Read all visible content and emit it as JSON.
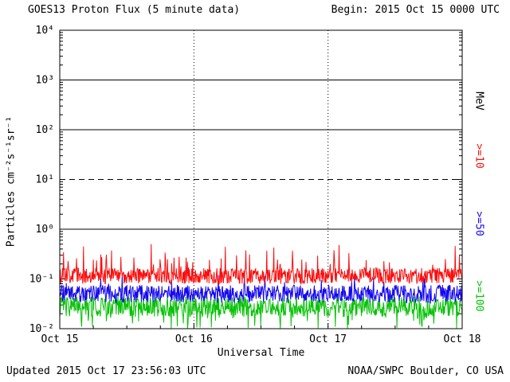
{
  "header": {
    "title": "GOES13 Proton Flux (5 minute data)",
    "begin_label": "Begin: 2015 Oct 15 0000 UTC"
  },
  "footer": {
    "updated": "Updated 2015 Oct 17 23:56:03 UTC",
    "credit": "NOAA/SWPC Boulder, CO USA"
  },
  "chart_data": {
    "type": "line",
    "title": "GOES13 Proton Flux (5 minute data)",
    "xlabel": "Universal Time",
    "ylabel": "Particles cm⁻²s⁻¹sr⁻¹",
    "right_axis_label": "MeV",
    "ylim": [
      0.01,
      10000
    ],
    "y_scale": "log",
    "x_days": 3,
    "points_per_day": 288,
    "x_ticks": [
      "Oct 15",
      "Oct 16",
      "Oct 17",
      "Oct 18"
    ],
    "y_ticks": [
      {
        "label": "10⁴",
        "value": 10000
      },
      {
        "label": "10³",
        "value": 1000
      },
      {
        "label": "10²",
        "value": 100
      },
      {
        "label": "10¹",
        "value": 10
      },
      {
        "label": "10⁰",
        "value": 1
      },
      {
        "label": "10⁻¹",
        "value": 0.1
      },
      {
        "label": "10⁻²",
        "value": 0.01
      }
    ],
    "threshold_lines": [
      {
        "value": 1000,
        "style": "solid"
      },
      {
        "value": 100,
        "style": "solid"
      },
      {
        "value": 10,
        "style": "dashed"
      },
      {
        "value": 1,
        "style": "solid"
      }
    ],
    "day_gridlines": [
      "Oct 16",
      "Oct 17"
    ],
    "grid_vertical_style": "dotted",
    "series": [
      {
        "name": ">=10 MeV proton flux",
        "label": ">=10",
        "color": "#fd0d0d",
        "approx_level": 0.115,
        "approx_range": [
          0.06,
          0.5
        ],
        "noise_decades": 0.16,
        "spike_prob": 0.1,
        "spike_decades": 0.5,
        "spike_dir": 1
      },
      {
        "name": ">=50 MeV proton flux",
        "label": ">=50",
        "color": "#1407f0",
        "approx_level": 0.05,
        "approx_range": [
          0.025,
          0.12
        ],
        "noise_decades": 0.18,
        "spike_prob": 0.06,
        "spike_decades": 0.3,
        "spike_dir": 1
      },
      {
        "name": ">=100 MeV proton flux",
        "label": ">=100",
        "color": "#06c206",
        "approx_level": 0.028,
        "approx_range": [
          0.01,
          0.05
        ],
        "noise_decades": 0.2,
        "spike_prob": 0.12,
        "spike_decades": 0.38,
        "spike_dir": -1
      }
    ]
  }
}
